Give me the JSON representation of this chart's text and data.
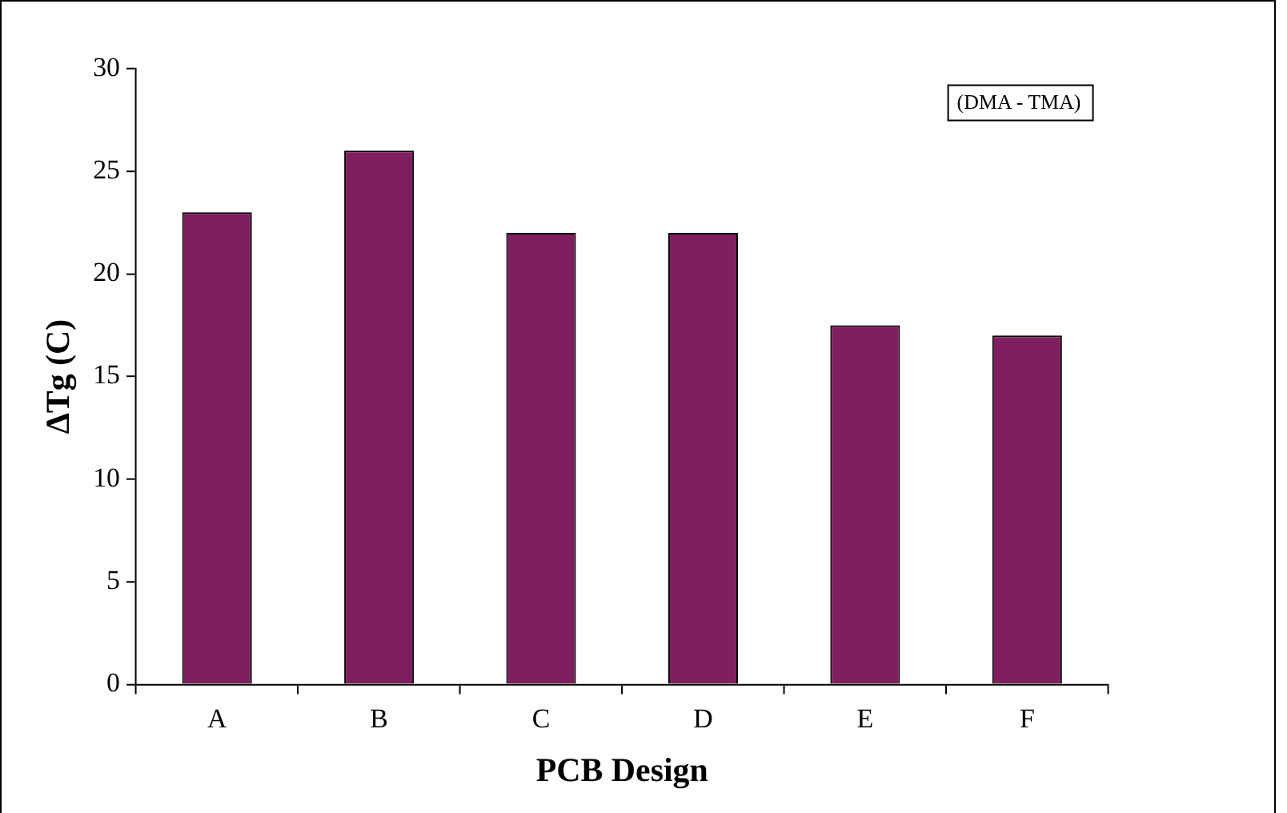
{
  "chart_data": {
    "type": "bar",
    "xlabel": "PCB Design",
    "ylabel": "ΔTg (C)",
    "categories": [
      "A",
      "B",
      "C",
      "D",
      "E",
      "F"
    ],
    "values": [
      23,
      26,
      22,
      22,
      17.5,
      17
    ],
    "color": "#7f1f5f",
    "ylim": [
      0,
      30
    ],
    "yticks": [
      0,
      5,
      10,
      15,
      20,
      25,
      30
    ],
    "grid": false,
    "legend": false,
    "annotations": [
      "(DMA - TMA)"
    ]
  }
}
